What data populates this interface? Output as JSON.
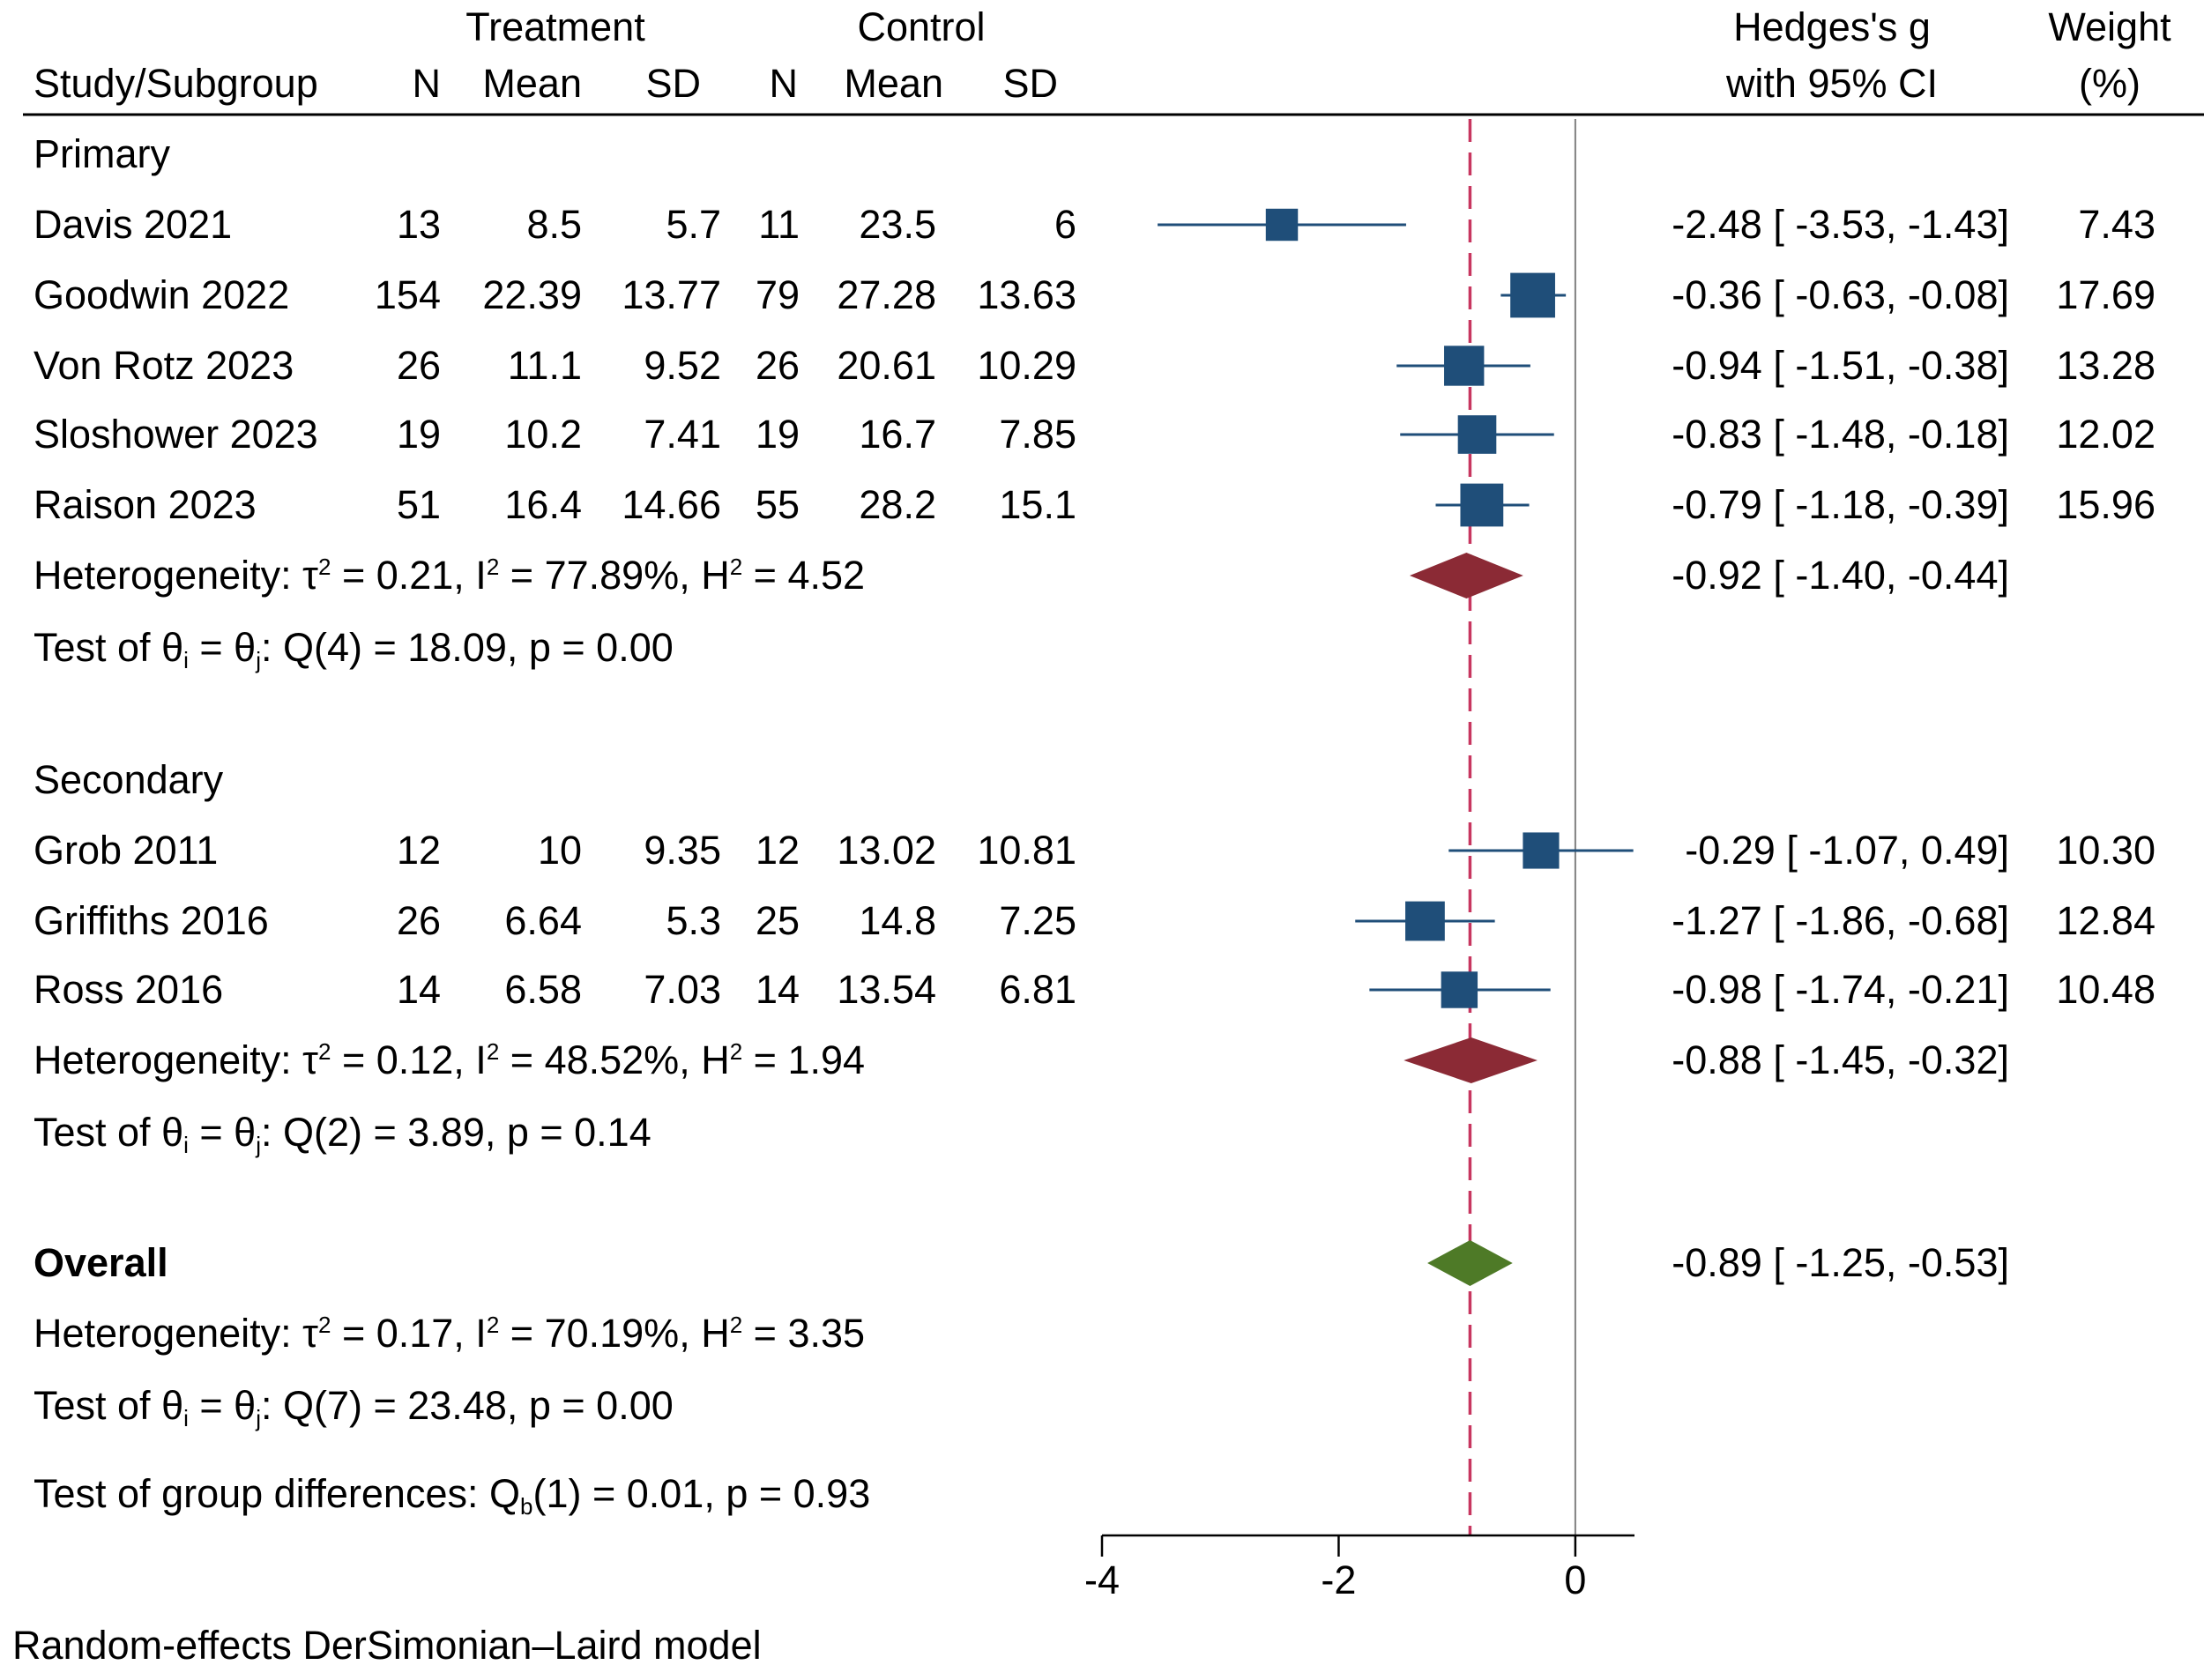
{
  "colors": {
    "study_marker": "#1f4e79",
    "subgroup_diamond": "#8b2a35",
    "overall_diamond": "#4e7a27",
    "overall_line": "#c7365f",
    "null_line": "#808080",
    "text": "#000000"
  },
  "header": {
    "treatment": "Treatment",
    "control": "Control",
    "effect_line1": "Hedges's g",
    "effect_line2": "with 95% CI",
    "weight_line1": "Weight",
    "weight_line2": "(%)",
    "columns": [
      "Study/Subgroup",
      "N",
      "Mean",
      "SD",
      "N",
      "Mean",
      "SD"
    ]
  },
  "subgroups": [
    {
      "name": "Primary",
      "studies": [
        {
          "study": "Davis  2021",
          "t_n": "13",
          "t_mean": "8.5",
          "t_sd": "5.7",
          "c_n": "11",
          "c_mean": "23.5",
          "c_sd": "6",
          "ci_text": "-2.48 [ -3.53,  -1.43]",
          "weight": "7.43"
        },
        {
          "study": "Goodwin  2022",
          "t_n": "154",
          "t_mean": "22.39",
          "t_sd": "13.77",
          "c_n": "79",
          "c_mean": "27.28",
          "c_sd": "13.63",
          "ci_text": "-0.36 [ -0.63,  -0.08]",
          "weight": "17.69"
        },
        {
          "study": "Von Rotz 2023",
          "t_n": "26",
          "t_mean": "11.1",
          "t_sd": "9.52",
          "c_n": "26",
          "c_mean": "20.61",
          "c_sd": "10.29",
          "ci_text": "-0.94 [ -1.51,  -0.38]",
          "weight": "13.28"
        },
        {
          "study": "Sloshower 2023",
          "t_n": "19",
          "t_mean": "10.2",
          "t_sd": "7.41",
          "c_n": "19",
          "c_mean": "16.7",
          "c_sd": "7.85",
          "ci_text": "-0.83 [ -1.48,  -0.18]",
          "weight": "12.02"
        },
        {
          "study": "Raison  2023",
          "t_n": "51",
          "t_mean": "16.4",
          "t_sd": "14.66",
          "c_n": "55",
          "c_mean": "28.2",
          "c_sd": "15.1",
          "ci_text": "-0.79 [ -1.18,  -0.39]",
          "weight": "15.96"
        }
      ],
      "heterogeneity": {
        "prefix": "Heterogeneity: τ",
        "mid1": " = 0.21, I",
        "mid2": " = 77.89%, H",
        "suffix": " = 4.52",
        "sup": "2"
      },
      "pooled_ci_text": "-0.92 [ -1.40,  -0.44]",
      "test": {
        "prefix": "Test of θ",
        "sub1": "i",
        "mid": " = θ",
        "sub2": "j",
        "suffix": ": Q(4) = 18.09, p = 0.00"
      }
    },
    {
      "name": "Secondary",
      "studies": [
        {
          "study": "Grob  2011",
          "t_n": "12",
          "t_mean": "10",
          "t_sd": "9.35",
          "c_n": "12",
          "c_mean": "13.02",
          "c_sd": "10.81",
          "ci_text": "-0.29 [ -1.07,   0.49]",
          "weight": "10.30"
        },
        {
          "study": "Griffiths 2016",
          "t_n": "26",
          "t_mean": "6.64",
          "t_sd": "5.3",
          "c_n": "25",
          "c_mean": "14.8",
          "c_sd": "7.25",
          "ci_text": "-1.27 [ -1.86,  -0.68]",
          "weight": "12.84"
        },
        {
          "study": "Ross  2016",
          "t_n": "14",
          "t_mean": "6.58",
          "t_sd": "7.03",
          "c_n": "14",
          "c_mean": "13.54",
          "c_sd": "6.81",
          "ci_text": "-0.98 [ -1.74,  -0.21]",
          "weight": "10.48"
        }
      ],
      "heterogeneity": {
        "prefix": "Heterogeneity: τ",
        "mid1": " = 0.12, I",
        "mid2": " = 48.52%, H",
        "suffix": " = 1.94",
        "sup": "2"
      },
      "pooled_ci_text": "-0.88 [ -1.45,  -0.32]",
      "test": {
        "prefix": "Test of θ",
        "sub1": "i",
        "mid": " = θ",
        "sub2": "j",
        "suffix": ": Q(2) = 3.89, p = 0.14"
      }
    }
  ],
  "overall": {
    "label": "Overall",
    "ci_text": "-0.89 [ -1.25,  -0.53]",
    "heterogeneity": {
      "prefix": "Heterogeneity: τ",
      "mid1": " = 0.17, I",
      "mid2": " = 70.19%, H",
      "suffix": " = 3.35",
      "sup": "2"
    },
    "test": {
      "prefix": "Test of θ",
      "sub1": "i",
      "mid": " = θ",
      "sub2": "j",
      "suffix": ": Q(7) = 23.48, p = 0.00"
    },
    "group_diff": {
      "prefix": "Test of group differences: Q",
      "sub": "b",
      "suffix": "(1) = 0.01, p = 0.93"
    }
  },
  "footnote": "Random-effects DerSimonian–Laird model",
  "chart_data": {
    "type": "forest",
    "xlim": [
      -4,
      0.5
    ],
    "xticks": [
      -4,
      -2,
      0
    ],
    "xtick_labels": [
      "-4",
      "-2",
      "0"
    ],
    "null_value": 0,
    "overall_estimate": -0.89,
    "studies": [
      {
        "study": "Davis  2021",
        "subgroup": "Primary",
        "g": -2.48,
        "lo": -3.53,
        "hi": -1.43,
        "weight": 7.43
      },
      {
        "study": "Goodwin  2022",
        "subgroup": "Primary",
        "g": -0.36,
        "lo": -0.63,
        "hi": -0.08,
        "weight": 17.69
      },
      {
        "study": "Von Rotz 2023",
        "subgroup": "Primary",
        "g": -0.94,
        "lo": -1.51,
        "hi": -0.38,
        "weight": 13.28
      },
      {
        "study": "Sloshower 2023",
        "subgroup": "Primary",
        "g": -0.83,
        "lo": -1.48,
        "hi": -0.18,
        "weight": 12.02
      },
      {
        "study": "Raison  2023",
        "subgroup": "Primary",
        "g": -0.79,
        "lo": -1.18,
        "hi": -0.39,
        "weight": 15.96
      },
      {
        "study": "Grob  2011",
        "subgroup": "Secondary",
        "g": -0.29,
        "lo": -1.07,
        "hi": 0.49,
        "weight": 10.3
      },
      {
        "study": "Griffiths 2016",
        "subgroup": "Secondary",
        "g": -1.27,
        "lo": -1.86,
        "hi": -0.68,
        "weight": 12.84
      },
      {
        "study": "Ross  2016",
        "subgroup": "Secondary",
        "g": -0.98,
        "lo": -1.74,
        "hi": -0.21,
        "weight": 10.48
      }
    ],
    "subgroup_pooled": [
      {
        "subgroup": "Primary",
        "g": -0.92,
        "lo": -1.4,
        "hi": -0.44
      },
      {
        "subgroup": "Secondary",
        "g": -0.88,
        "lo": -1.45,
        "hi": -0.32
      }
    ],
    "overall": {
      "g": -0.89,
      "lo": -1.25,
      "hi": -0.53
    }
  }
}
